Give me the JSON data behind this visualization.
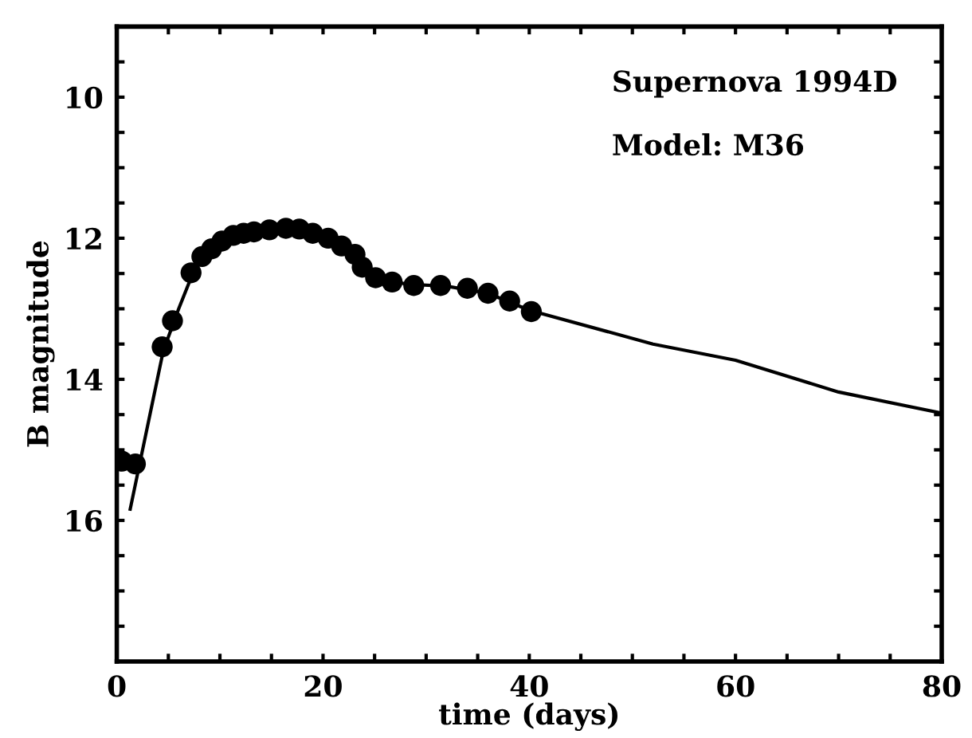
{
  "chart_data": {
    "type": "line",
    "xlabel": "time (days)",
    "ylabel": "B magnitude",
    "annotations": [
      "Supernova 1994D",
      "Model: M36"
    ],
    "series": [
      {
        "type": "scatter",
        "color": "#000000",
        "marker": "circle",
        "x": [
          0.5,
          1.8,
          4.4,
          5.4,
          7.2,
          8.25,
          9.2,
          10.2,
          11.3,
          12.3,
          13.3,
          14.8,
          16.4,
          17.7,
          19.0,
          20.5,
          21.8,
          23.1,
          23.8,
          25.1,
          26.7,
          28.8,
          31.4,
          34.0,
          36.0,
          38.1,
          40.2
        ],
        "values": [
          15.16,
          15.2,
          13.54,
          13.17,
          12.49,
          12.26,
          12.15,
          12.04,
          11.96,
          11.93,
          11.91,
          11.88,
          11.86,
          11.87,
          11.93,
          12.0,
          12.11,
          12.23,
          12.41,
          12.56,
          12.62,
          12.67,
          12.67,
          12.71,
          12.78,
          12.89,
          13.04
        ]
      },
      {
        "color": "#000000",
        "marker": "none",
        "line_style": "solid",
        "x": [
          1.3,
          4.5,
          6,
          7.5,
          10,
          13,
          17,
          20,
          23,
          25,
          28,
          32,
          36,
          40,
          52,
          60,
          70,
          80
        ],
        "values": [
          15.84,
          13.6,
          13.0,
          12.45,
          12.05,
          11.92,
          11.86,
          11.98,
          12.22,
          12.52,
          12.65,
          12.68,
          12.78,
          13.02,
          13.5,
          13.73,
          14.18,
          14.48
        ]
      }
    ],
    "xlim": [
      0,
      80
    ],
    "ylim": [
      18,
      9
    ],
    "xticks": [
      0,
      {
        "value": 5,
        "label": null
      },
      {
        "value": 10,
        "label": null
      },
      {
        "value": 15,
        "label": null
      },
      20,
      {
        "value": 25,
        "label": null
      },
      {
        "value": 30,
        "label": null
      },
      {
        "value": 35,
        "label": null
      },
      40,
      {
        "value": 45,
        "label": null
      },
      {
        "value": 50,
        "label": null
      },
      {
        "value": 55,
        "label": null
      },
      60,
      {
        "value": 65,
        "label": null
      },
      {
        "value": 70,
        "label": null
      },
      {
        "value": 75,
        "label": null
      },
      80
    ],
    "yticks": [
      {
        "value": 9.5,
        "label": null
      },
      10,
      {
        "value": 10.5,
        "label": null
      },
      {
        "value": 11,
        "label": null
      },
      {
        "value": 11.5,
        "label": null
      },
      12,
      {
        "value": 12.5,
        "label": null
      },
      {
        "value": 13,
        "label": null
      },
      {
        "value": 13.5,
        "label": null
      },
      14,
      {
        "value": 14.5,
        "label": null
      },
      {
        "value": 15,
        "label": null
      },
      {
        "value": 15.5,
        "label": null
      },
      16,
      {
        "value": 16.5,
        "label": null
      },
      {
        "value": 17,
        "label": null
      },
      {
        "value": 17.5,
        "label": null
      }
    ],
    "grid": false,
    "legend": false
  }
}
